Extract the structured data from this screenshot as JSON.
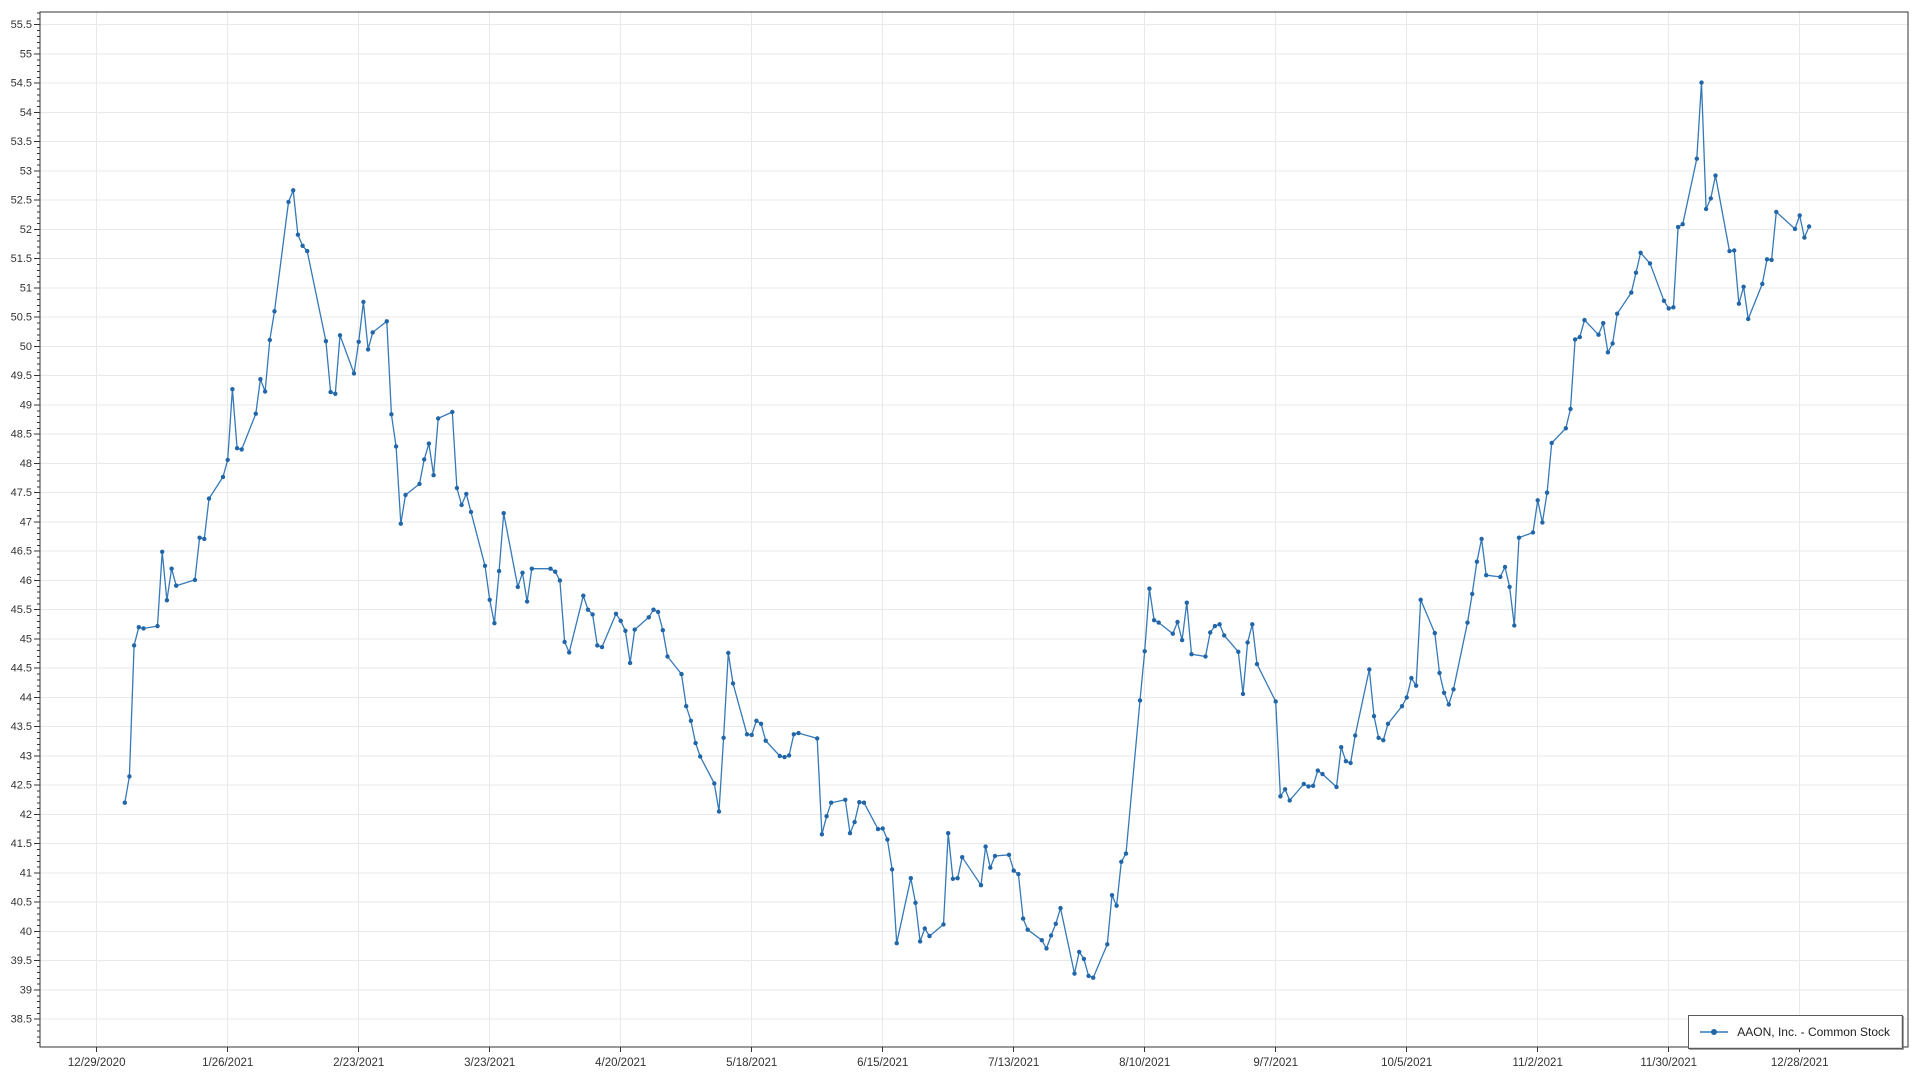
{
  "chart_data": {
    "type": "line",
    "title": "",
    "xlabel": "",
    "ylabel": "",
    "grid": true,
    "legend_position": "bottom-right",
    "colors": {
      "line": "#3579b8",
      "marker": "#2066a8",
      "grid": "#e9e9e9",
      "axis": "#333333",
      "label": "#333333",
      "background": "#ffffff",
      "legend_border": "#5a5a5a"
    },
    "y_axis": {
      "min": 38.5,
      "max": 55.5,
      "major_step": 0.5,
      "minor_step": 0.1,
      "tick_labels": [
        "55.5",
        "55",
        "54.5",
        "54",
        "53.5",
        "53",
        "52.5",
        "52",
        "51.5",
        "51",
        "50.5",
        "50",
        "49.5",
        "49",
        "48.5",
        "48",
        "47.5",
        "47",
        "46.5",
        "46",
        "45.5",
        "45",
        "44.5",
        "44",
        "43.5",
        "43",
        "42.5",
        "42",
        "41.5",
        "41",
        "40.5",
        "40",
        "39.5",
        "39",
        "38.5"
      ]
    },
    "x_axis": {
      "origin_date": "2020-12-29",
      "tick_labels": [
        "12/29/2020",
        "1/26/2021",
        "2/23/2021",
        "3/23/2021",
        "4/20/2021",
        "5/18/2021",
        "6/15/2021",
        "7/13/2021",
        "8/10/2021",
        "9/7/2021",
        "10/5/2021",
        "11/2/2021",
        "11/30/2021",
        "12/28/2021"
      ]
    },
    "series": [
      {
        "name": "AAON, Inc. - Common Stock",
        "points": [
          [
            "2021-01-04",
            42.2
          ],
          [
            "2021-01-05",
            42.65
          ],
          [
            "2021-01-06",
            44.89
          ],
          [
            "2021-01-07",
            45.2
          ],
          [
            "2021-01-08",
            45.18
          ],
          [
            "2021-01-11",
            45.22
          ],
          [
            "2021-01-12",
            46.49
          ],
          [
            "2021-01-13",
            45.66
          ],
          [
            "2021-01-14",
            46.2
          ],
          [
            "2021-01-15",
            45.91
          ],
          [
            "2021-01-19",
            46.01
          ],
          [
            "2021-01-20",
            46.73
          ],
          [
            "2021-01-21",
            46.71
          ],
          [
            "2021-01-22",
            47.4
          ],
          [
            "2021-01-25",
            47.77
          ],
          [
            "2021-01-26",
            48.06
          ],
          [
            "2021-01-27",
            49.27
          ],
          [
            "2021-01-28",
            48.26
          ],
          [
            "2021-01-29",
            48.24
          ],
          [
            "2021-02-01",
            48.85
          ],
          [
            "2021-02-02",
            49.44
          ],
          [
            "2021-02-03",
            49.23
          ],
          [
            "2021-02-04",
            50.11
          ],
          [
            "2021-02-05",
            50.6
          ],
          [
            "2021-02-08",
            52.47
          ],
          [
            "2021-02-09",
            52.67
          ],
          [
            "2021-02-10",
            51.91
          ],
          [
            "2021-02-11",
            51.72
          ],
          [
            "2021-02-12",
            51.63
          ],
          [
            "2021-02-16",
            50.09
          ],
          [
            "2021-02-17",
            49.22
          ],
          [
            "2021-02-18",
            49.19
          ],
          [
            "2021-02-19",
            50.19
          ],
          [
            "2021-02-22",
            49.54
          ],
          [
            "2021-02-23",
            50.08
          ],
          [
            "2021-02-24",
            50.76
          ],
          [
            "2021-02-25",
            49.95
          ],
          [
            "2021-02-26",
            50.24
          ],
          [
            "2021-03-01",
            50.43
          ],
          [
            "2021-03-02",
            48.84
          ],
          [
            "2021-03-03",
            48.29
          ],
          [
            "2021-03-04",
            46.97
          ],
          [
            "2021-03-05",
            47.46
          ],
          [
            "2021-03-08",
            47.65
          ],
          [
            "2021-03-09",
            48.07
          ],
          [
            "2021-03-10",
            48.34
          ],
          [
            "2021-03-11",
            47.8
          ],
          [
            "2021-03-12",
            48.77
          ],
          [
            "2021-03-15",
            48.88
          ],
          [
            "2021-03-16",
            47.58
          ],
          [
            "2021-03-17",
            47.29
          ],
          [
            "2021-03-18",
            47.48
          ],
          [
            "2021-03-19",
            47.17
          ],
          [
            "2021-03-22",
            46.25
          ],
          [
            "2021-03-23",
            45.67
          ],
          [
            "2021-03-24",
            45.27
          ],
          [
            "2021-03-25",
            46.16
          ],
          [
            "2021-03-26",
            47.15
          ],
          [
            "2021-03-29",
            45.89
          ],
          [
            "2021-03-30",
            46.13
          ],
          [
            "2021-03-31",
            45.64
          ],
          [
            "2021-04-01",
            46.2
          ],
          [
            "2021-04-05",
            46.2
          ],
          [
            "2021-04-06",
            46.15
          ],
          [
            "2021-04-07",
            46.0
          ],
          [
            "2021-04-08",
            44.95
          ],
          [
            "2021-04-09",
            44.77
          ],
          [
            "2021-04-12",
            45.74
          ],
          [
            "2021-04-13",
            45.5
          ],
          [
            "2021-04-14",
            45.42
          ],
          [
            "2021-04-15",
            44.89
          ],
          [
            "2021-04-16",
            44.86
          ],
          [
            "2021-04-19",
            45.43
          ],
          [
            "2021-04-20",
            45.31
          ],
          [
            "2021-04-21",
            45.14
          ],
          [
            "2021-04-22",
            44.59
          ],
          [
            "2021-04-23",
            45.16
          ],
          [
            "2021-04-26",
            45.37
          ],
          [
            "2021-04-27",
            45.5
          ],
          [
            "2021-04-28",
            45.46
          ],
          [
            "2021-04-29",
            45.15
          ],
          [
            "2021-04-30",
            44.7
          ],
          [
            "2021-05-03",
            44.4
          ],
          [
            "2021-05-04",
            43.85
          ],
          [
            "2021-05-05",
            43.6
          ],
          [
            "2021-05-06",
            43.22
          ],
          [
            "2021-05-07",
            42.99
          ],
          [
            "2021-05-10",
            42.53
          ],
          [
            "2021-05-11",
            42.05
          ],
          [
            "2021-05-12",
            43.31
          ],
          [
            "2021-05-13",
            44.76
          ],
          [
            "2021-05-14",
            44.24
          ],
          [
            "2021-05-17",
            43.37
          ],
          [
            "2021-05-18",
            43.36
          ],
          [
            "2021-05-19",
            43.6
          ],
          [
            "2021-05-20",
            43.55
          ],
          [
            "2021-05-21",
            43.26
          ],
          [
            "2021-05-24",
            43.0
          ],
          [
            "2021-05-25",
            42.98
          ],
          [
            "2021-05-26",
            43.01
          ],
          [
            "2021-05-27",
            43.37
          ],
          [
            "2021-05-28",
            43.39
          ],
          [
            "2021-06-01",
            43.3
          ],
          [
            "2021-06-02",
            41.66
          ],
          [
            "2021-06-03",
            41.97
          ],
          [
            "2021-06-04",
            42.2
          ],
          [
            "2021-06-07",
            42.25
          ],
          [
            "2021-06-08",
            41.68
          ],
          [
            "2021-06-09",
            41.87
          ],
          [
            "2021-06-10",
            42.21
          ],
          [
            "2021-06-11",
            42.2
          ],
          [
            "2021-06-14",
            41.75
          ],
          [
            "2021-06-15",
            41.76
          ],
          [
            "2021-06-16",
            41.57
          ],
          [
            "2021-06-17",
            41.06
          ],
          [
            "2021-06-18",
            39.8
          ],
          [
            "2021-06-21",
            40.91
          ],
          [
            "2021-06-22",
            40.49
          ],
          [
            "2021-06-23",
            39.83
          ],
          [
            "2021-06-24",
            40.05
          ],
          [
            "2021-06-25",
            39.92
          ],
          [
            "2021-06-28",
            40.12
          ],
          [
            "2021-06-29",
            41.68
          ],
          [
            "2021-06-30",
            40.9
          ],
          [
            "2021-07-01",
            40.91
          ],
          [
            "2021-07-02",
            41.27
          ],
          [
            "2021-07-06",
            40.79
          ],
          [
            "2021-07-07",
            41.45
          ],
          [
            "2021-07-08",
            41.09
          ],
          [
            "2021-07-09",
            41.29
          ],
          [
            "2021-07-12",
            41.31
          ],
          [
            "2021-07-13",
            41.04
          ],
          [
            "2021-07-14",
            40.98
          ],
          [
            "2021-07-15",
            40.22
          ],
          [
            "2021-07-16",
            40.03
          ],
          [
            "2021-07-19",
            39.85
          ],
          [
            "2021-07-20",
            39.71
          ],
          [
            "2021-07-21",
            39.93
          ],
          [
            "2021-07-22",
            40.13
          ],
          [
            "2021-07-23",
            40.4
          ],
          [
            "2021-07-26",
            39.28
          ],
          [
            "2021-07-27",
            39.65
          ],
          [
            "2021-07-28",
            39.53
          ],
          [
            "2021-07-29",
            39.24
          ],
          [
            "2021-07-30",
            39.21
          ],
          [
            "2021-08-02",
            39.78
          ],
          [
            "2021-08-03",
            40.62
          ],
          [
            "2021-08-04",
            40.44
          ],
          [
            "2021-08-05",
            41.19
          ],
          [
            "2021-08-06",
            41.33
          ],
          [
            "2021-08-09",
            43.95
          ],
          [
            "2021-08-10",
            44.79
          ],
          [
            "2021-08-11",
            45.86
          ],
          [
            "2021-08-12",
            45.32
          ],
          [
            "2021-08-13",
            45.28
          ],
          [
            "2021-08-16",
            45.09
          ],
          [
            "2021-08-17",
            45.29
          ],
          [
            "2021-08-18",
            44.98
          ],
          [
            "2021-08-19",
            45.62
          ],
          [
            "2021-08-20",
            44.74
          ],
          [
            "2021-08-23",
            44.7
          ],
          [
            "2021-08-24",
            45.11
          ],
          [
            "2021-08-25",
            45.22
          ],
          [
            "2021-08-26",
            45.25
          ],
          [
            "2021-08-27",
            45.06
          ],
          [
            "2021-08-30",
            44.78
          ],
          [
            "2021-08-31",
            44.06
          ],
          [
            "2021-09-01",
            44.94
          ],
          [
            "2021-09-02",
            45.25
          ],
          [
            "2021-09-03",
            44.57
          ],
          [
            "2021-09-07",
            43.93
          ],
          [
            "2021-09-08",
            42.31
          ],
          [
            "2021-09-09",
            42.43
          ],
          [
            "2021-09-10",
            42.24
          ],
          [
            "2021-09-13",
            42.52
          ],
          [
            "2021-09-14",
            42.48
          ],
          [
            "2021-09-15",
            42.49
          ],
          [
            "2021-09-16",
            42.75
          ],
          [
            "2021-09-17",
            42.69
          ],
          [
            "2021-09-20",
            42.47
          ],
          [
            "2021-09-21",
            43.15
          ],
          [
            "2021-09-22",
            42.91
          ],
          [
            "2021-09-23",
            42.88
          ],
          [
            "2021-09-24",
            43.35
          ],
          [
            "2021-09-27",
            44.48
          ],
          [
            "2021-09-28",
            43.68
          ],
          [
            "2021-09-29",
            43.31
          ],
          [
            "2021-09-30",
            43.27
          ],
          [
            "2021-10-01",
            43.55
          ],
          [
            "2021-10-04",
            43.85
          ],
          [
            "2021-10-05",
            44.0
          ],
          [
            "2021-10-06",
            44.33
          ],
          [
            "2021-10-07",
            44.2
          ],
          [
            "2021-10-08",
            45.67
          ],
          [
            "2021-10-11",
            45.1
          ],
          [
            "2021-10-12",
            44.42
          ],
          [
            "2021-10-13",
            44.08
          ],
          [
            "2021-10-14",
            43.88
          ],
          [
            "2021-10-15",
            44.14
          ],
          [
            "2021-10-18",
            45.28
          ],
          [
            "2021-10-19",
            45.77
          ],
          [
            "2021-10-20",
            46.32
          ],
          [
            "2021-10-21",
            46.71
          ],
          [
            "2021-10-22",
            46.09
          ],
          [
            "2021-10-25",
            46.06
          ],
          [
            "2021-10-26",
            46.23
          ],
          [
            "2021-10-27",
            45.89
          ],
          [
            "2021-10-28",
            45.23
          ],
          [
            "2021-10-29",
            46.73
          ],
          [
            "2021-11-01",
            46.82
          ],
          [
            "2021-11-02",
            47.37
          ],
          [
            "2021-11-03",
            46.99
          ],
          [
            "2021-11-04",
            47.5
          ],
          [
            "2021-11-05",
            48.35
          ],
          [
            "2021-11-08",
            48.6
          ],
          [
            "2021-11-09",
            48.93
          ],
          [
            "2021-11-10",
            50.12
          ],
          [
            "2021-11-11",
            50.16
          ],
          [
            "2021-11-12",
            50.45
          ],
          [
            "2021-11-15",
            50.2
          ],
          [
            "2021-11-16",
            50.4
          ],
          [
            "2021-11-17",
            49.9
          ],
          [
            "2021-11-18",
            50.05
          ],
          [
            "2021-11-19",
            50.56
          ],
          [
            "2021-11-22",
            50.92
          ],
          [
            "2021-11-23",
            51.26
          ],
          [
            "2021-11-24",
            51.6
          ],
          [
            "2021-11-26",
            51.42
          ],
          [
            "2021-11-29",
            50.78
          ],
          [
            "2021-11-30",
            50.65
          ],
          [
            "2021-12-01",
            50.67
          ],
          [
            "2021-12-02",
            52.04
          ],
          [
            "2021-12-03",
            52.09
          ],
          [
            "2021-12-06",
            53.21
          ],
          [
            "2021-12-07",
            54.51
          ],
          [
            "2021-12-08",
            52.35
          ],
          [
            "2021-12-09",
            52.53
          ],
          [
            "2021-12-10",
            52.92
          ],
          [
            "2021-12-13",
            51.63
          ],
          [
            "2021-12-14",
            51.64
          ],
          [
            "2021-12-15",
            50.73
          ],
          [
            "2021-12-16",
            51.02
          ],
          [
            "2021-12-17",
            50.47
          ],
          [
            "2021-12-20",
            51.07
          ],
          [
            "2021-12-21",
            51.49
          ],
          [
            "2021-12-22",
            51.48
          ],
          [
            "2021-12-23",
            52.3
          ],
          [
            "2021-12-27",
            52.01
          ],
          [
            "2021-12-28",
            52.24
          ],
          [
            "2021-12-29",
            51.86
          ],
          [
            "2021-12-30",
            52.05
          ]
        ]
      }
    ]
  }
}
